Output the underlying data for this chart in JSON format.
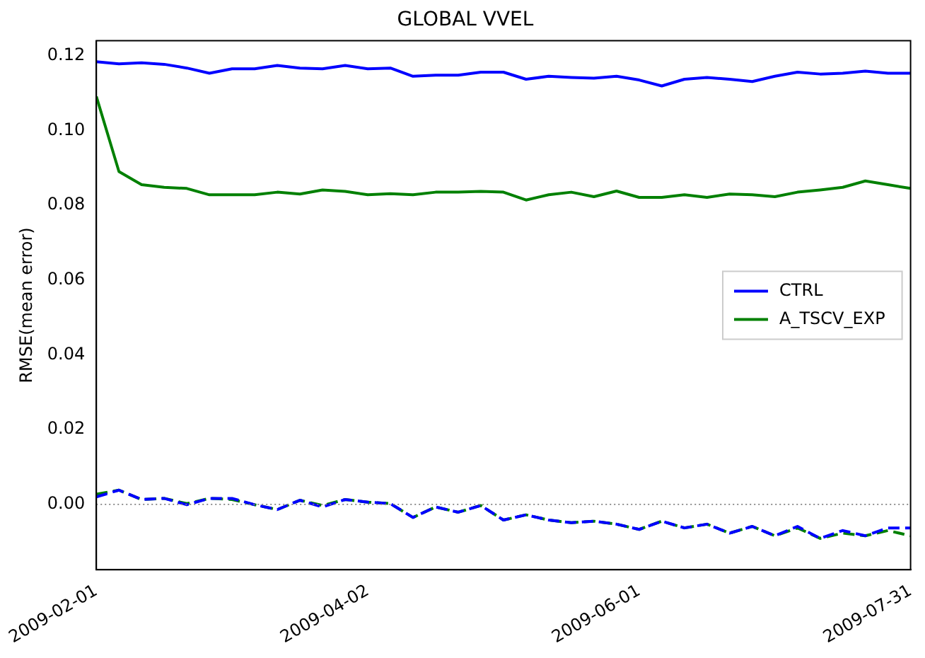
{
  "chart_data": {
    "type": "line",
    "title": "GLOBAL VVEL",
    "ylabel": "RMSE(mean error)",
    "x": [
      "2009-02-01",
      "2009-02-06",
      "2009-02-11",
      "2009-02-16",
      "2009-02-21",
      "2009-02-26",
      "2009-03-03",
      "2009-03-08",
      "2009-03-13",
      "2009-03-18",
      "2009-03-23",
      "2009-03-28",
      "2009-04-02",
      "2009-04-07",
      "2009-04-12",
      "2009-04-17",
      "2009-04-22",
      "2009-04-27",
      "2009-05-02",
      "2009-05-07",
      "2009-05-12",
      "2009-05-17",
      "2009-05-22",
      "2009-05-27",
      "2009-06-01",
      "2009-06-06",
      "2009-06-11",
      "2009-06-16",
      "2009-06-21",
      "2009-06-26",
      "2009-07-01",
      "2009-07-06",
      "2009-07-11",
      "2009-07-16",
      "2009-07-21",
      "2009-07-26",
      "2009-07-31"
    ],
    "series": [
      {
        "name": "CTRL",
        "color": "#0000ff",
        "line_style": "solid",
        "values": [
          0.1184,
          0.1178,
          0.1181,
          0.1177,
          0.1167,
          0.1153,
          0.1165,
          0.1165,
          0.1174,
          0.1167,
          0.1165,
          0.1174,
          0.1165,
          0.1167,
          0.1145,
          0.1148,
          0.1148,
          0.1156,
          0.1156,
          0.1137,
          0.1145,
          0.1142,
          0.114,
          0.1145,
          0.1135,
          0.1119,
          0.1137,
          0.1142,
          0.1137,
          0.1131,
          0.1145,
          0.1156,
          0.1151,
          0.1153,
          0.1159,
          0.1153,
          0.1153
        ]
      },
      {
        "name": "A_TSCV_EXP",
        "color": "#008000",
        "line_style": "solid",
        "values": [
          0.1091,
          0.089,
          0.0855,
          0.0848,
          0.0845,
          0.0828,
          0.0828,
          0.0828,
          0.0835,
          0.083,
          0.0841,
          0.0837,
          0.0828,
          0.0831,
          0.0828,
          0.0835,
          0.0835,
          0.0837,
          0.0835,
          0.0814,
          0.0828,
          0.0835,
          0.0823,
          0.0838,
          0.0821,
          0.0821,
          0.0828,
          0.0821,
          0.083,
          0.0828,
          0.0823,
          0.0835,
          0.0841,
          0.0848,
          0.0865,
          0.0855,
          0.0845
        ]
      },
      {
        "color": "#0000ff",
        "line_style": "dashed",
        "values": [
          0.002,
          0.0038,
          0.0013,
          0.0016,
          -0.0001,
          0.0016,
          0.0016,
          -0.0001,
          -0.0014,
          0.0011,
          -0.0007,
          0.0013,
          0.0006,
          0.0002,
          -0.0035,
          -0.0007,
          -0.0021,
          -0.0003,
          -0.0042,
          -0.0028,
          -0.0042,
          -0.0049,
          -0.0045,
          -0.0053,
          -0.0067,
          -0.0045,
          -0.0063,
          -0.0053,
          -0.0077,
          -0.0059,
          -0.0084,
          -0.0059,
          -0.0091,
          -0.007,
          -0.0084,
          -0.0063,
          -0.0063
        ]
      },
      {
        "color": "#008000",
        "line_style": "dashed",
        "values": [
          0.0027,
          0.0038,
          0.0013,
          0.0016,
          0.0002,
          0.0016,
          0.0013,
          -0.0001,
          -0.0014,
          0.0011,
          -0.0003,
          0.0013,
          0.0006,
          0.0002,
          -0.0035,
          -0.0007,
          -0.0021,
          -0.0003,
          -0.0042,
          -0.0028,
          -0.0042,
          -0.0049,
          -0.0045,
          -0.0053,
          -0.0067,
          -0.0045,
          -0.0063,
          -0.0053,
          -0.0077,
          -0.0059,
          -0.0084,
          -0.0063,
          -0.0091,
          -0.0077,
          -0.0084,
          -0.007,
          -0.0084
        ]
      }
    ],
    "xlim": [
      "2009-02-01",
      "2009-07-31"
    ],
    "xticks": [
      "2009-02-01",
      "2009-04-02",
      "2009-06-01",
      "2009-07-31"
    ],
    "ylim": [
      -0.0175,
      0.124
    ],
    "yticks": [
      {
        "value": 0,
        "label": "0.00"
      },
      {
        "value": 0.02,
        "label": "0.02"
      },
      {
        "value": 0.04,
        "label": "0.04"
      },
      {
        "value": 0.06,
        "label": "0.06"
      },
      {
        "value": 0.08,
        "label": "0.08"
      },
      {
        "value": 0.1,
        "label": "0.10"
      },
      {
        "value": 0.12,
        "label": "0.12"
      }
    ],
    "ref_lines": [
      {
        "axis": "y",
        "value": 0,
        "color": "#808080",
        "line_style": "dotted"
      }
    ],
    "grid": false,
    "legend": "right",
    "marker": "none"
  }
}
